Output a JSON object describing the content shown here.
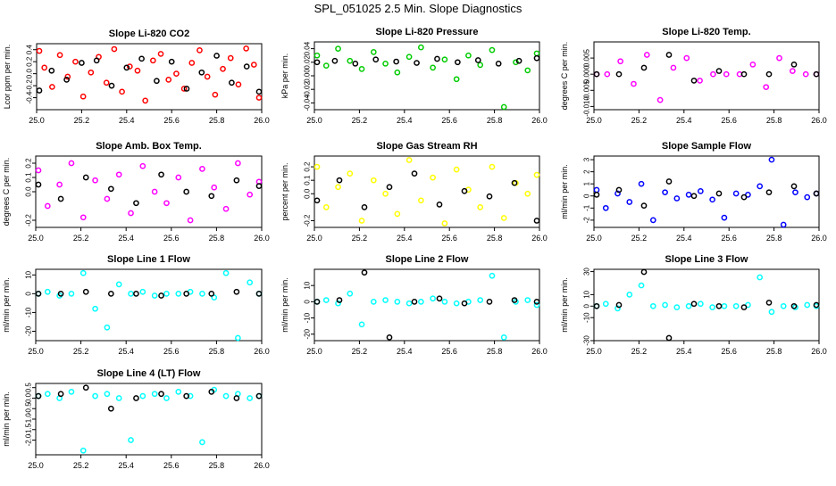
{
  "title": "SPL_051025  2.5 Min. Slope Diagnostics",
  "chart_data": [
    {
      "type": "scatter",
      "title": "Slope Li-820 CO2",
      "ylabel": "Lcor ppm per min.",
      "xlim": [
        25.0,
        26.0
      ],
      "ylim": [
        -0.6,
        0.5
      ],
      "xticks": [
        "25.0",
        "25.2",
        "25.4",
        "25.6",
        "25.8",
        "26.0"
      ],
      "yticks": [
        "-0.4",
        "-0.2",
        "0.0",
        "0.2",
        "0.4"
      ],
      "series": [
        {
          "color": "#ff0000",
          "values": [
            0.38,
            0.1,
            -0.22,
            0.31,
            -0.05,
            0.2,
            -0.38,
            0.02,
            0.28,
            -0.15,
            0.41,
            -0.3,
            0.12,
            0.05,
            -0.45,
            0.22,
            0.33,
            -0.1,
            0.0,
            -0.25,
            0.18,
            0.39,
            -0.05,
            -0.35,
            0.08,
            0.26,
            -0.18,
            0.42,
            0.15,
            -0.4
          ]
        },
        {
          "color": "#000000",
          "values": [
            -0.28,
            0.05,
            -0.1,
            0.18,
            0.22,
            -0.2,
            0.1,
            0.25,
            -0.12,
            0.2,
            -0.25,
            0.02,
            0.3,
            -0.15,
            0.12,
            -0.3
          ]
        }
      ]
    },
    {
      "type": "scatter",
      "title": "Slope Li-820 Pressure",
      "ylabel": "kPa per min.",
      "xlim": [
        25.0,
        26.0
      ],
      "ylim": [
        -0.05,
        0.05
      ],
      "xticks": [
        "25.0",
        "25.2",
        "25.4",
        "25.6",
        "25.8",
        "26.0"
      ],
      "yticks": [
        "-0.04",
        "-0.02",
        "0.00",
        "0.02",
        "0.04"
      ],
      "series": [
        {
          "color": "#00cc00",
          "values": [
            0.03,
            0.015,
            0.04,
            0.022,
            0.01,
            0.035,
            0.018,
            0.005,
            0.028,
            0.042,
            0.012,
            0.024,
            -0.005,
            0.03,
            0.016,
            0.038,
            -0.046,
            0.02,
            0.008,
            0.033
          ]
        },
        {
          "color": "#000000",
          "values": [
            0.02,
            0.022,
            0.018,
            0.024,
            0.021,
            0.019,
            0.025,
            0.02,
            0.023,
            0.018,
            0.022,
            0.026
          ]
        }
      ]
    },
    {
      "type": "scatter",
      "title": "Slope Li-820 Temp.",
      "ylabel": "degrees C per min.",
      "xlim": [
        25.0,
        26.0
      ],
      "ylim": [
        -0.011,
        0.01
      ],
      "xticks": [
        "25.0",
        "25.2",
        "25.4",
        "25.6",
        "25.8",
        "26.0"
      ],
      "yticks": [
        "-0.010",
        "-0.005",
        "0.000",
        "0.005"
      ],
      "series": [
        {
          "color": "#ff00ff",
          "values": [
            0.0,
            0.0,
            0.004,
            -0.003,
            0.006,
            -0.008,
            0.002,
            0.005,
            -0.002,
            0.0,
            0.0,
            0.0,
            0.003,
            -0.004,
            0.005,
            0.001,
            0.0,
            0.0
          ]
        },
        {
          "color": "#000000",
          "values": [
            0.0,
            0.0,
            0.002,
            0.006,
            -0.002,
            0.001,
            0.0,
            0.0,
            0.003,
            0.0
          ]
        }
      ]
    },
    {
      "type": "scatter",
      "title": "Slope Amb. Box Temp.",
      "ylabel": "degrees C per min.",
      "xlim": [
        25.0,
        26.0
      ],
      "ylim": [
        -0.25,
        0.25
      ],
      "xticks": [
        "25.0",
        "25.2",
        "25.4",
        "25.6",
        "25.8",
        "26.0"
      ],
      "yticks": [
        "-0.2",
        "0.0",
        "0.1",
        "0.2"
      ],
      "series": [
        {
          "color": "#ff00ff",
          "values": [
            0.15,
            -0.1,
            0.05,
            0.2,
            -0.18,
            0.08,
            -0.05,
            0.12,
            -0.15,
            0.18,
            0.0,
            -0.08,
            0.1,
            -0.2,
            0.16,
            0.03,
            -0.12,
            0.2,
            -0.02,
            0.07
          ]
        },
        {
          "color": "#000000",
          "values": [
            0.05,
            -0.05,
            0.1,
            0.02,
            -0.08,
            0.12,
            0.0,
            -0.03,
            0.08,
            0.04
          ]
        }
      ]
    },
    {
      "type": "scatter",
      "title": "Slope Gas Stream RH",
      "ylabel": "percent per min.",
      "xlim": [
        25.0,
        26.0
      ],
      "ylim": [
        -0.25,
        0.28
      ],
      "xticks": [
        "25.0",
        "25.2",
        "25.4",
        "25.6",
        "25.8",
        "26.0"
      ],
      "yticks": [
        "-0.2",
        "0.0",
        "0.1",
        "0.2"
      ],
      "series": [
        {
          "color": "#ffff00",
          "values": [
            0.2,
            -0.1,
            0.05,
            0.15,
            -0.2,
            0.1,
            0.0,
            -0.15,
            0.25,
            -0.05,
            0.12,
            -0.22,
            0.18,
            0.03,
            -0.1,
            0.2,
            -0.18,
            0.08,
            0.0,
            0.14
          ]
        },
        {
          "color": "#000000",
          "values": [
            -0.05,
            0.1,
            -0.1,
            0.05,
            0.15,
            -0.08,
            0.02,
            -0.02,
            0.08,
            -0.2
          ]
        }
      ]
    },
    {
      "type": "scatter",
      "title": "Slope Sample Flow",
      "ylabel": "ml/min per min.",
      "xlim": [
        25.0,
        26.0
      ],
      "ylim": [
        -2.6,
        3.3
      ],
      "xticks": [
        "25.0",
        "25.2",
        "25.4",
        "25.6",
        "25.8",
        "26.0"
      ],
      "yticks": [
        "-2",
        "-1",
        "0",
        "1",
        "2",
        "3"
      ],
      "series": [
        {
          "color": "#0000ff",
          "values": [
            0.5,
            -1.0,
            0.2,
            -0.5,
            1.0,
            -2.0,
            0.3,
            -0.2,
            0.1,
            0.4,
            -0.3,
            -1.8,
            0.2,
            0.1,
            0.8,
            3.0,
            -2.4,
            0.3,
            -0.1,
            0.2
          ]
        },
        {
          "color": "#000000",
          "values": [
            0.1,
            0.5,
            -0.8,
            1.2,
            0.0,
            0.2,
            -0.1,
            0.3,
            0.8,
            0.2
          ]
        }
      ]
    },
    {
      "type": "scatter",
      "title": "Slope Line 1 Flow",
      "ylabel": "ml/min per min.",
      "xlim": [
        25.0,
        26.0
      ],
      "ylim": [
        -25,
        13
      ],
      "xticks": [
        "25.0",
        "25.2",
        "25.4",
        "25.6",
        "25.8",
        "26.0"
      ],
      "yticks": [
        "-20",
        "-10",
        "0",
        "10"
      ],
      "series": [
        {
          "color": "#00ffff",
          "values": [
            0,
            1,
            -1,
            0,
            11,
            -8,
            -18,
            5,
            0,
            1,
            -1,
            0,
            0,
            1,
            0,
            -2,
            11,
            -24,
            6,
            0
          ]
        },
        {
          "color": "#000000",
          "values": [
            0,
            0,
            1,
            0,
            0,
            -1,
            0,
            0,
            1,
            0
          ]
        }
      ]
    },
    {
      "type": "scatter",
      "title": "Slope Line 2 Flow",
      "ylabel": "ml/min per min.",
      "xlim": [
        25.0,
        26.0
      ],
      "ylim": [
        -24,
        20
      ],
      "xticks": [
        "25.0",
        "25.2",
        "25.4",
        "25.6",
        "25.8",
        "26.0"
      ],
      "yticks": [
        "-20",
        "-10",
        "0",
        "10"
      ],
      "series": [
        {
          "color": "#00ffff",
          "values": [
            0,
            1,
            -1,
            5,
            -14,
            0,
            1,
            0,
            -1,
            0,
            2,
            0,
            -1,
            0,
            1,
            16,
            -22,
            0,
            1,
            -2
          ]
        },
        {
          "color": "#000000",
          "values": [
            0,
            1,
            18,
            -22,
            0,
            2,
            -1,
            0,
            1,
            0
          ]
        }
      ]
    },
    {
      "type": "scatter",
      "title": "Slope Line 3 Flow",
      "ylabel": "ml/min per min.",
      "xlim": [
        25.0,
        26.0
      ],
      "ylim": [
        -30,
        32
      ],
      "xticks": [
        "25.0",
        "25.2",
        "25.4",
        "25.6",
        "25.8",
        "26.0"
      ],
      "yticks": [
        "-30",
        "-10",
        "0",
        "10",
        "30"
      ],
      "series": [
        {
          "color": "#00ffff",
          "values": [
            0,
            2,
            -2,
            10,
            18,
            0,
            1,
            -1,
            0,
            2,
            -1,
            0,
            0,
            1,
            25,
            -5,
            0,
            -1,
            1,
            0
          ]
        },
        {
          "color": "#000000",
          "values": [
            0,
            1,
            30,
            -28,
            2,
            0,
            -1,
            3,
            0,
            1
          ]
        }
      ]
    },
    {
      "type": "scatter",
      "title": "Slope Line 4 (LT) Flow",
      "ylabel": "ml/min per min.",
      "xlim": [
        25.0,
        26.0
      ],
      "ylim": [
        -2.7,
        0.7
      ],
      "xticks": [
        "25.0",
        "25.2",
        "25.4",
        "25.6",
        "25.8",
        "26.0"
      ],
      "yticks": [
        "-2.0",
        "-1.5",
        "-1.0",
        "-0.5",
        "0.0",
        "0.5"
      ],
      "series": [
        {
          "color": "#00ffff",
          "values": [
            0.1,
            0.2,
            0.0,
            0.3,
            -2.5,
            0.1,
            0.2,
            0.0,
            -2.0,
            0.1,
            0.2,
            0.0,
            0.3,
            0.1,
            -2.1,
            0.4,
            0.1,
            0.2,
            0.0,
            0.1
          ]
        },
        {
          "color": "#000000",
          "values": [
            0.1,
            0.2,
            0.5,
            -0.5,
            0.0,
            0.2,
            0.1,
            0.3,
            0.0,
            0.1
          ]
        }
      ]
    }
  ]
}
